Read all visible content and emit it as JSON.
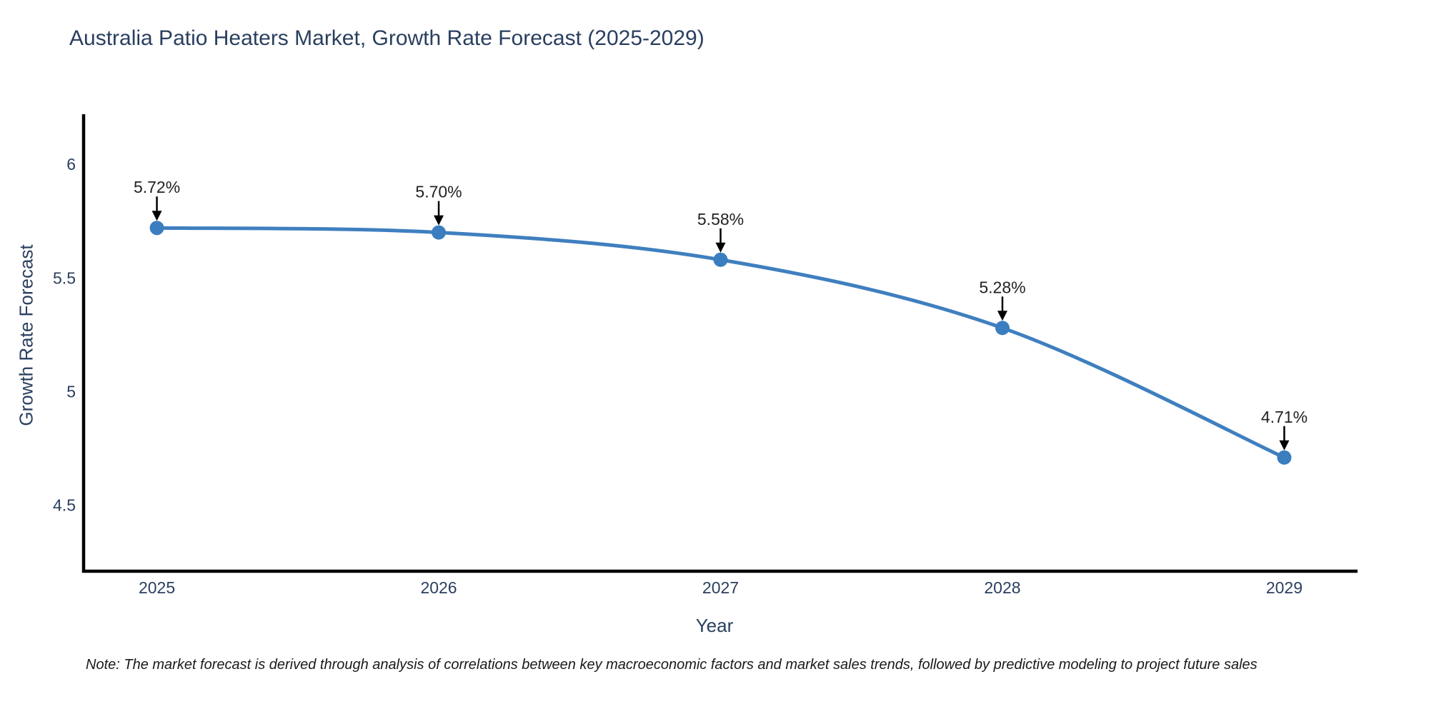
{
  "title": "Australia Patio Heaters Market, Growth Rate Forecast (2025-2029)",
  "note": "Note: The market forecast is derived through analysis of correlations between key macroeconomic factors and market sales trends, followed by predictive modeling to project future sales",
  "chart_data": {
    "type": "line",
    "title": "Australia Patio Heaters Market, Growth Rate Forecast (2025-2029)",
    "xlabel": "Year",
    "ylabel": "Growth Rate Forecast",
    "x": [
      2025,
      2026,
      2027,
      2028,
      2029
    ],
    "y": [
      5.72,
      5.7,
      5.58,
      5.28,
      4.71
    ],
    "point_labels": [
      "5.72%",
      "5.70%",
      "5.58%",
      "5.28%",
      "4.71%"
    ],
    "xtick_labels": [
      "2025",
      "2026",
      "2027",
      "2028",
      "2029"
    ],
    "yticks": [
      4.5,
      5.0,
      5.5,
      6.0
    ],
    "ytick_labels": [
      "4.5",
      "5",
      "5.5",
      "6"
    ],
    "xlim": [
      2024.74,
      2029.26
    ],
    "ylim": [
      4.21,
      6.22
    ],
    "line_shape": "spline",
    "grid": "off",
    "legend": "off",
    "colors": {
      "line": "#3f7fbf",
      "marker": "#3a7ebf",
      "axis_line": "#000000",
      "tick_text": "#2a3f5f",
      "title_text": "#2a3f5f",
      "annotation_text": "#222222",
      "arrow": "#000000",
      "background": "#ffffff"
    }
  }
}
